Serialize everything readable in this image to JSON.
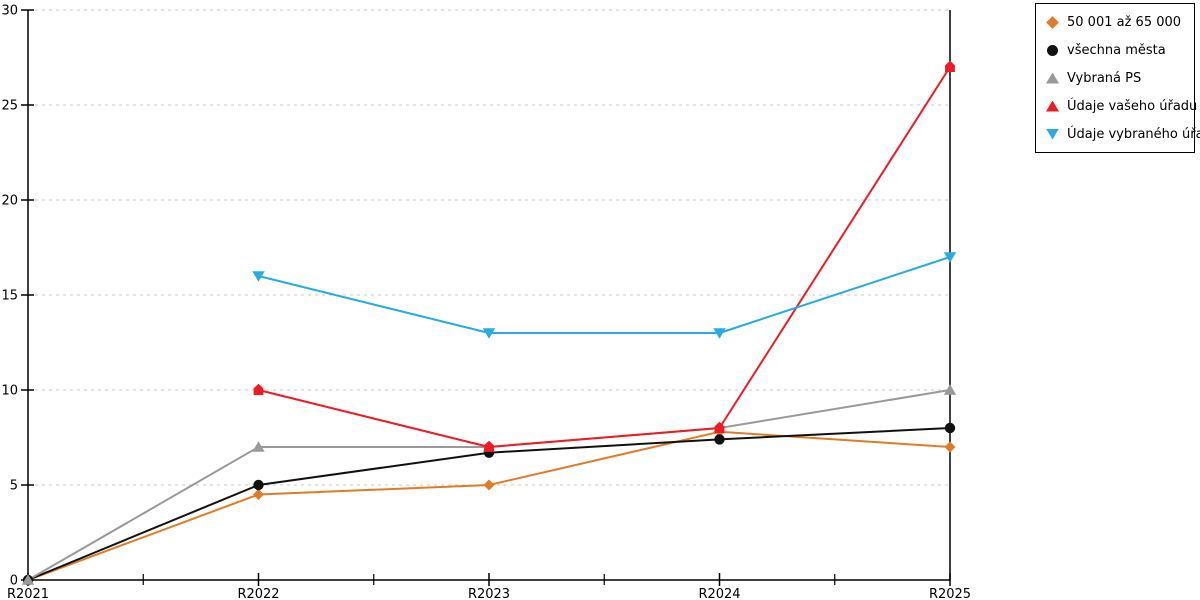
{
  "chart_data": {
    "type": "line",
    "title": "",
    "xlabel": "",
    "ylabel": "",
    "categories": [
      "R2021",
      "R2022",
      "R2023",
      "R2024",
      "R2025"
    ],
    "series": [
      {
        "name": "50 001 až 65 000",
        "marker": "diamond",
        "color": "#e07b2a",
        "values": [
          0,
          4.5,
          5,
          7.8,
          7
        ]
      },
      {
        "name": "všechna města",
        "marker": "circle",
        "color": "#111111",
        "values": [
          0,
          5,
          6.7,
          7.4,
          8
        ]
      },
      {
        "name": "Vybraná PS",
        "marker": "triangle-up",
        "color": "#999999",
        "values": [
          0,
          7,
          7,
          8,
          10
        ]
      },
      {
        "name": "Údaje vašeho úřadu",
        "marker": "pentagon-up",
        "color": "#ed1c24",
        "values": [
          null,
          10,
          7,
          8,
          27
        ]
      },
      {
        "name": "Údaje vybraného úřadu",
        "marker": "triangle-down",
        "color": "#29abe2",
        "values": [
          null,
          16,
          13,
          13,
          17
        ]
      }
    ],
    "ylim": [
      0,
      30
    ],
    "yticks": [
      0,
      5,
      10,
      15,
      20,
      25,
      30
    ],
    "grid": "horizontal dashed",
    "grid_color": "#c8c8c8",
    "axis_color": "#000000",
    "legend_position": "top-right"
  }
}
